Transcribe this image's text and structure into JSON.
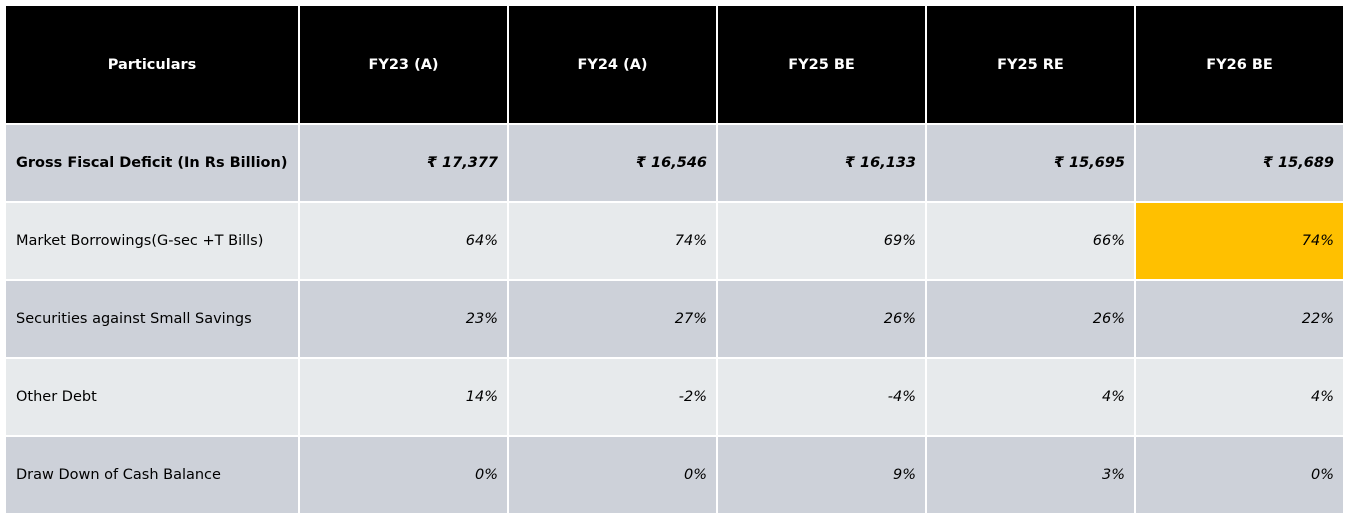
{
  "table": {
    "headers": [
      "Particulars",
      "FY23 (A)",
      "FY24 (A)",
      "FY25 BE",
      "FY25 RE",
      "FY26 BE"
    ],
    "rows": [
      {
        "label": "Gross Fiscal Deficit (In Rs Billion)",
        "values": [
          "₹ 17,377",
          "₹ 16,546",
          "₹ 16,133",
          "₹ 15,695",
          "₹ 15,689"
        ],
        "bold": true
      },
      {
        "label": "Market Borrowings(G-sec +T Bills)",
        "values": [
          "64%",
          "74%",
          "69%",
          "66%",
          "74%"
        ]
      },
      {
        "label": "Securities against Small Savings",
        "values": [
          "23%",
          "27%",
          "26%",
          "26%",
          "22%"
        ]
      },
      {
        "label": "Other Debt",
        "values": [
          "14%",
          "-2%",
          "-4%",
          "4%",
          "4%"
        ]
      },
      {
        "label": "Draw Down of Cash Balance",
        "values": [
          "0%",
          "0%",
          "9%",
          "3%",
          "0%"
        ]
      }
    ]
  },
  "colors": {
    "header_bg": "#000000",
    "header_text": "#ffffff",
    "row_dark": "#cdd1d9",
    "row_light": "#e7eaec",
    "highlight": "#ffc000"
  }
}
